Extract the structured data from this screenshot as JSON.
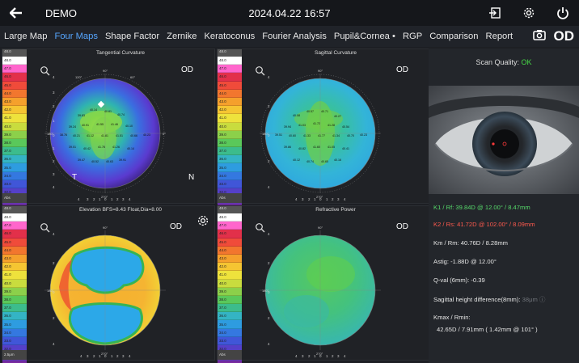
{
  "titlebar": {
    "app_title": "DEMO",
    "datetime": "2024.04.22 16:57"
  },
  "tabs": [
    {
      "label": "Large Map",
      "active": false
    },
    {
      "label": "Four Maps",
      "active": true
    },
    {
      "label": "Shape Factor",
      "active": false
    },
    {
      "label": "Zernike",
      "active": false
    },
    {
      "label": "Keratoconus",
      "active": false
    },
    {
      "label": "Fourier Analysis",
      "active": false
    },
    {
      "label": "Pupil&Cornea •",
      "active": false
    },
    {
      "label": "RGP",
      "active": false
    },
    {
      "label": "Comparison",
      "active": false
    },
    {
      "label": "Report",
      "active": false
    }
  ],
  "eye": "OD",
  "maps": {
    "tangential": {
      "title": "Tangential Curvature",
      "od": "OD",
      "t": "T",
      "n": "N"
    },
    "sagittal": {
      "title": "Sagittal Curvature",
      "od": "OD"
    },
    "elevation": {
      "title": "Elevation BFS=8.43 Float,Dia=8.00",
      "od": "OD"
    },
    "refractive": {
      "title": "Refractive Power",
      "od": "OD"
    }
  },
  "scale": {
    "top_label": "48.0",
    "bottom_label_curv": "Abs",
    "bottom_label_elev": "2.5μm",
    "values": [
      "48.0",
      "47.0",
      "46.0",
      "45.0",
      "44.0",
      "43.0",
      "42.0",
      "41.0",
      "40.0",
      "39.0",
      "38.0",
      "37.0",
      "36.0",
      "35.0",
      "34.0",
      "33.0",
      "32.0",
      "31.0",
      "30.0"
    ]
  },
  "side": {
    "scan_quality_label": "Scan Quality:",
    "scan_quality_value": "OK",
    "k1": "K1 / Rf:   39.84D @ 12.00° / 8.47mm",
    "k2": "K2 / Rs:   41.72D @ 102.00° / 8.09mm",
    "km": "Km / Rm:   40.76D / 8.28mm",
    "astig": "Astig:   -1.88D @ 12.00°",
    "qval": "Q-val (6mm):   -0.39",
    "sag_label": "Sagittal height difference(8mm):",
    "sag_value": "38μm ⓘ",
    "kmax_label": "Kmax / Rmin:",
    "kmax_value": "42.65D / 7.91mm ( 1.42mm @ 101° )"
  },
  "colors": {
    "accent": "#56a6ff",
    "ok": "#46d846",
    "k1": "#56d86a",
    "k2": "#ff5a4e"
  }
}
